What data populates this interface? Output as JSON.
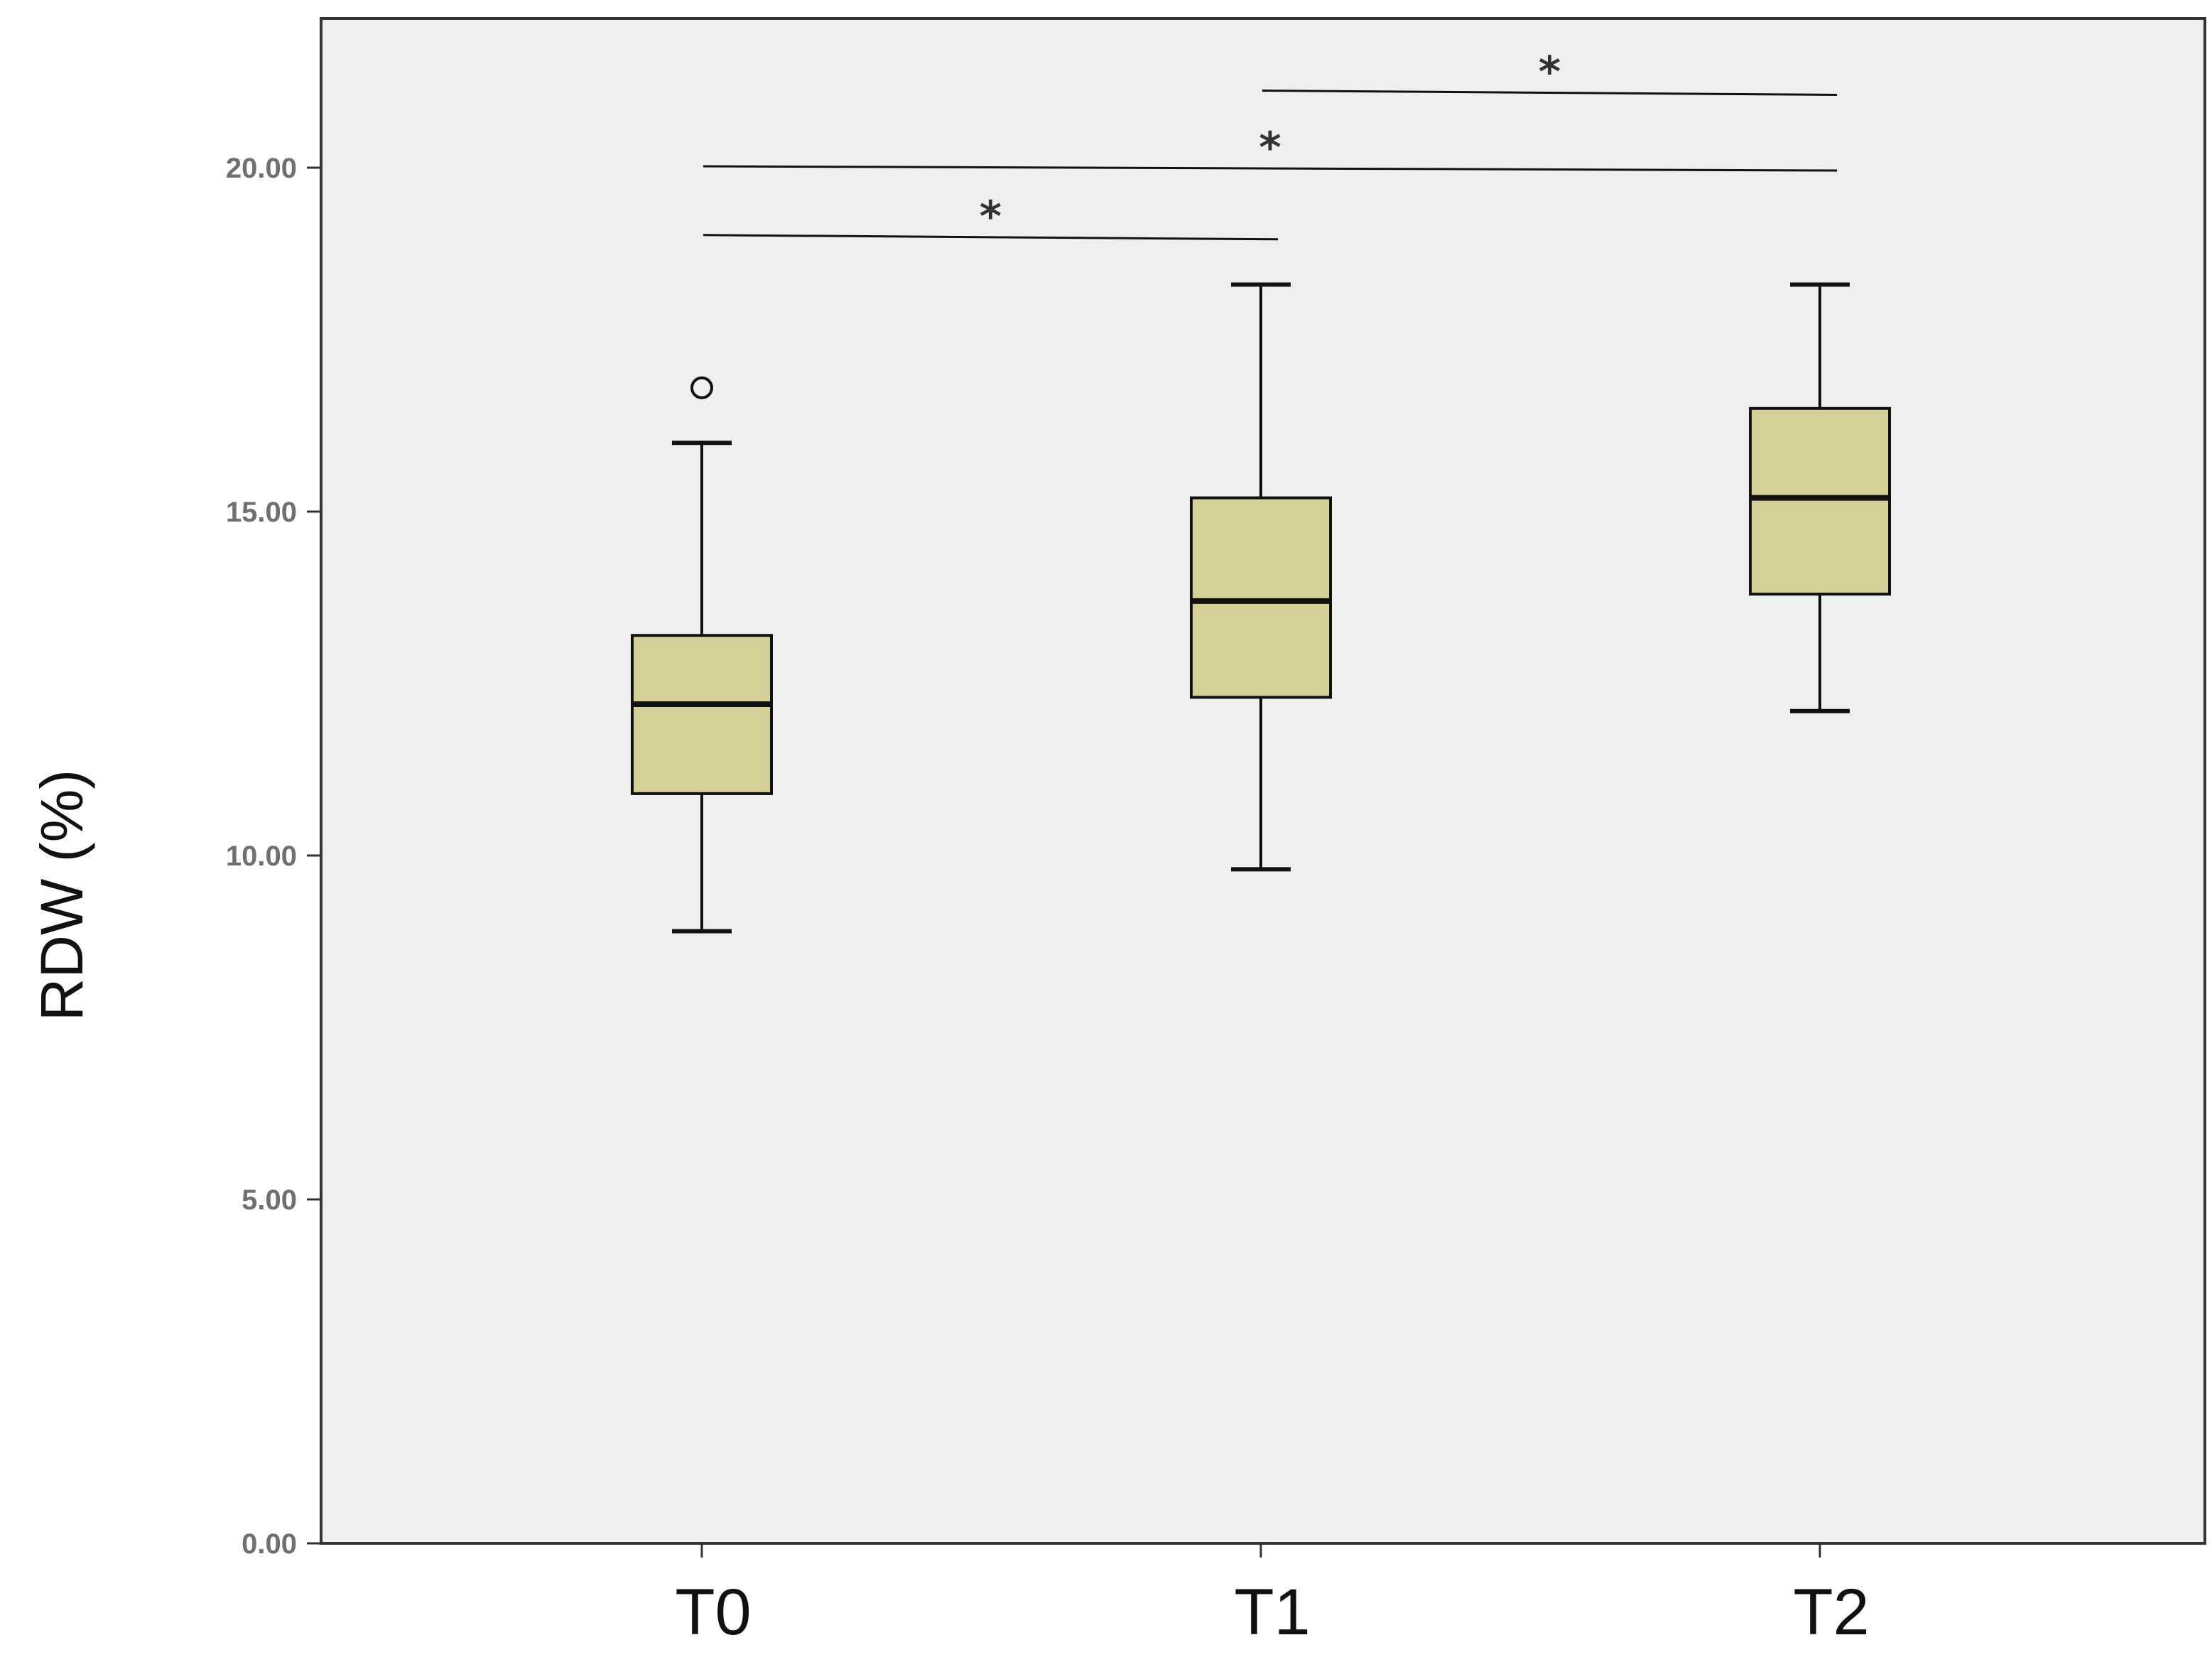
{
  "chart_data": {
    "type": "box",
    "title": "",
    "xlabel": "",
    "ylabel": "RDW (%)",
    "ylim": [
      0,
      22.5
    ],
    "yticks": [
      0,
      5,
      10,
      15,
      20
    ],
    "ytick_labels": [
      "0.00",
      "5.00",
      "10.00",
      "15.00",
      "20.00"
    ],
    "categories": [
      "T0",
      "T1",
      "T2"
    ],
    "boxes": [
      {
        "name": "T0",
        "whisker_low": 8.9,
        "q1": 10.9,
        "median": 12.2,
        "q3": 13.2,
        "whisker_high": 16.0,
        "outliers": [
          16.8
        ]
      },
      {
        "name": "T1",
        "whisker_low": 9.8,
        "q1": 12.3,
        "median": 13.7,
        "q3": 15.2,
        "whisker_high": 18.3,
        "outliers": []
      },
      {
        "name": "T2",
        "whisker_low": 12.1,
        "q1": 13.8,
        "median": 15.2,
        "q3": 16.5,
        "whisker_high": 18.3,
        "outliers": []
      }
    ],
    "significance": [
      {
        "from": "T0",
        "to": "T1",
        "y": 19.0,
        "label": "*"
      },
      {
        "from": "T0",
        "to": "T2",
        "y": 20.0,
        "label": "*"
      },
      {
        "from": "T1",
        "to": "T2",
        "y": 21.1,
        "label": "*"
      }
    ],
    "grid": false,
    "colors": {
      "plot_background": "#efefef",
      "box_fill": "#d5cf98",
      "stroke": "#111111",
      "axis": "#333333"
    }
  }
}
